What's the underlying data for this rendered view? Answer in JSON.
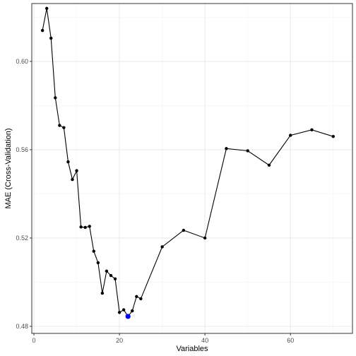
{
  "chart_data": {
    "type": "line",
    "xlabel": "Variables",
    "ylabel": "MAE (Cross-Validation)",
    "xlim": [
      -0.5,
      74.5
    ],
    "ylim": [
      0.4768,
      0.6262
    ],
    "x_ticks": [
      0,
      20,
      40,
      60
    ],
    "y_ticks": [
      0.48,
      0.52,
      0.56,
      0.6
    ],
    "x_tick_labels": [
      "0",
      "20",
      "40",
      "60"
    ],
    "y_tick_labels": [
      "0.48",
      "0.52",
      "0.56",
      "0.60"
    ],
    "grid": true,
    "colors": {
      "line": "#000000",
      "point": "#000000",
      "highlight": "#0000ff",
      "panel_border": "#333333",
      "grid": "#ebebeb"
    },
    "series": [
      {
        "x": [
          2,
          3,
          4,
          5,
          6,
          7,
          8,
          9,
          10,
          11,
          12,
          13,
          14,
          15,
          16,
          17,
          18,
          19,
          20,
          21,
          22,
          23,
          24,
          25,
          30,
          35,
          40,
          45,
          50,
          55,
          60,
          65,
          70
        ],
        "y": [
          0.614,
          0.624,
          0.6105,
          0.5835,
          0.571,
          0.57,
          0.5545,
          0.5465,
          0.5505,
          0.525,
          0.5248,
          0.5253,
          0.514,
          0.5088,
          0.495,
          0.505,
          0.503,
          0.5015,
          0.4863,
          0.4875,
          0.4845,
          0.487,
          0.4935,
          0.4925,
          0.516,
          0.5235,
          0.52,
          0.5605,
          0.5595,
          0.553,
          0.5665,
          0.569,
          0.566
        ]
      }
    ],
    "highlight": {
      "x": 22,
      "y": 0.4845
    }
  }
}
